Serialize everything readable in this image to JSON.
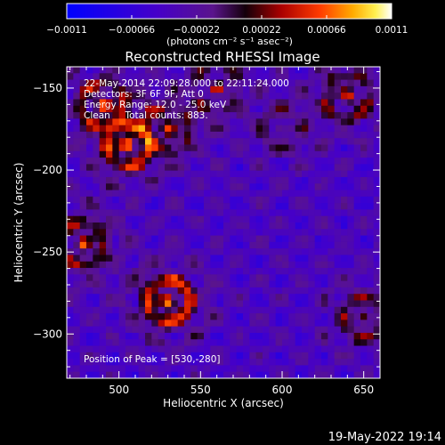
{
  "chart_data": {
    "type": "heatmap",
    "title": "Reconstructed RHESSI Image",
    "xlabel": "Heliocentric X (arcsec)",
    "ylabel": "Heliocentric Y (arcsec)",
    "xlim": [
      468,
      660
    ],
    "ylim": [
      -327,
      -137
    ],
    "x_ticks": [
      500,
      550,
      600,
      650
    ],
    "y_ticks": [
      -150,
      -200,
      -250,
      -300
    ],
    "grid": false,
    "colorbar": {
      "range": [
        -0.0011,
        0.0011
      ],
      "ticks": [
        -0.0011,
        -0.00066,
        -0.00022,
        0.00022,
        0.00066,
        0.0011
      ],
      "tick_labels": [
        "−0.0011",
        "−0.00066",
        "−0.00022",
        "0.00022",
        "0.00066",
        "0.0011"
      ],
      "units": "(photons cm⁻² s⁻¹ asec⁻²)",
      "placement": "top"
    },
    "annotations": [
      "22-May-2014 22:09:28.000 to 22:11:24.000",
      "Detectors: 3F 6F 9F, Att 0",
      "Energy Range: 12.0 - 25.0 keV",
      "Clean     Total counts: 883.",
      "Position of Peak = [530,-280]"
    ],
    "peak": {
      "x": 530,
      "y": -280
    },
    "bright_regions": [
      {
        "x": 530,
        "y": -280,
        "intensity": 0.0011
      },
      {
        "x": 505,
        "y": -185,
        "intensity": 0.0009
      },
      {
        "x": 490,
        "y": -160,
        "intensity": 0.0008
      },
      {
        "x": 478,
        "y": -245,
        "intensity": 0.0008
      },
      {
        "x": 530,
        "y": -175,
        "intensity": 0.0006
      },
      {
        "x": 640,
        "y": -155,
        "intensity": 0.0007
      },
      {
        "x": 560,
        "y": -150,
        "intensity": 0.0005
      },
      {
        "x": 650,
        "y": -290,
        "intensity": 0.0006
      },
      {
        "x": 600,
        "y": -175,
        "intensity": 0.0004
      }
    ]
  },
  "footer": {
    "timestamp": "19-May-2022 19:14"
  }
}
